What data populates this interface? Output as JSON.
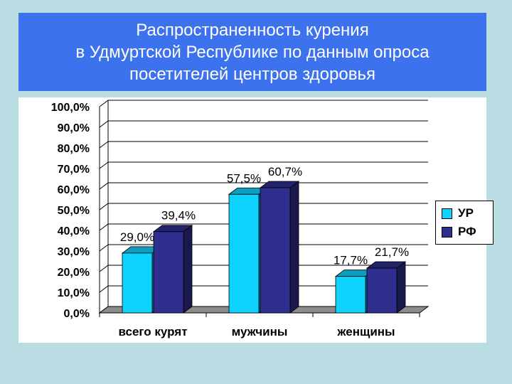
{
  "title": {
    "lines": [
      "Распространенность курения",
      "в Удмуртской Республике по данным опроса",
      "посетителей центров здоровья"
    ]
  },
  "colors": {
    "banner": "#3d72ee",
    "background": "#b9dde3",
    "series_ur": "#0fd3ff",
    "series_rf": "#2e2e8e"
  },
  "chart_data": {
    "type": "bar",
    "categories": [
      "всего курят",
      "мужчины",
      "женщины"
    ],
    "series": [
      {
        "name": "УР",
        "values": [
          29.0,
          57.5,
          17.7
        ],
        "labels": [
          "29,0%",
          "57,5%",
          "17,7%"
        ]
      },
      {
        "name": "РФ",
        "values": [
          39.4,
          60.7,
          21.7
        ],
        "labels": [
          "39,4%",
          "60,7%",
          "21,7%"
        ]
      }
    ],
    "y_ticks": [
      "0,0%",
      "10,0%",
      "20,0%",
      "30,0%",
      "40,0%",
      "50,0%",
      "60,0%",
      "70,0%",
      "80,0%",
      "90,0%",
      "100,0%"
    ],
    "ylim": [
      0,
      100
    ],
    "grid": true,
    "style": "3d-clustered-column",
    "legend_position": "right"
  }
}
